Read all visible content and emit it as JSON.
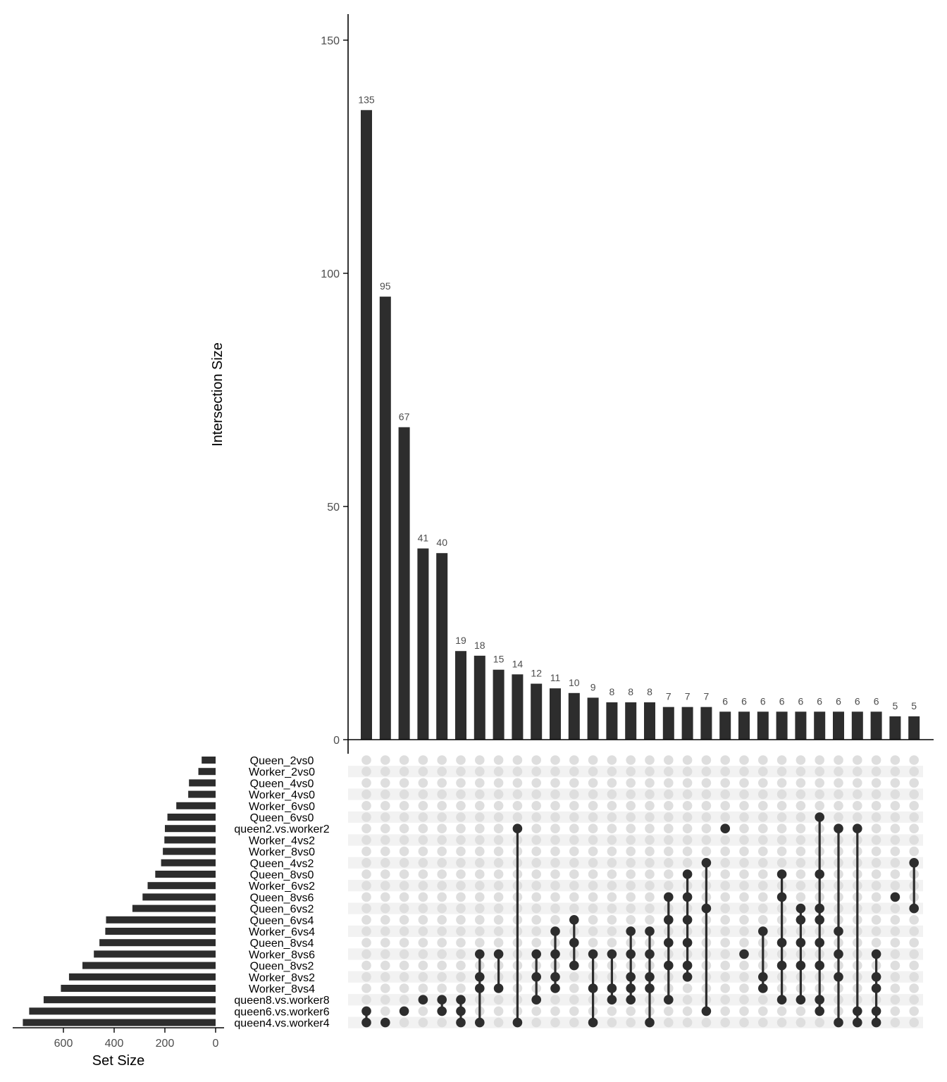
{
  "chart_data": {
    "type": "bar",
    "ylabel": "Intersection Size",
    "set_size_label": "Set Size",
    "ylim": [
      0,
      155
    ],
    "yticks": [
      0,
      50,
      100,
      150
    ],
    "set_size_ticks": [
      600,
      400,
      200,
      0
    ],
    "set_size_xlim": [
      800,
      0
    ],
    "sets": [
      {
        "name": "Queen_2vs0",
        "size": 55
      },
      {
        "name": "Worker_2vs0",
        "size": 68
      },
      {
        "name": "Queen_4vs0",
        "size": 105
      },
      {
        "name": "Worker_4vs0",
        "size": 108
      },
      {
        "name": "Worker_6vs0",
        "size": 155
      },
      {
        "name": "Queen_6vs0",
        "size": 190
      },
      {
        "name": "queen2.vs.worker2",
        "size": 200
      },
      {
        "name": "Worker_4vs2",
        "size": 202
      },
      {
        "name": "Worker_8vs0",
        "size": 208
      },
      {
        "name": "Queen_4vs2",
        "size": 215
      },
      {
        "name": "Queen_8vs0",
        "size": 238
      },
      {
        "name": "Worker_6vs2",
        "size": 268
      },
      {
        "name": "Queen_8vs6",
        "size": 288
      },
      {
        "name": "Queen_6vs2",
        "size": 328
      },
      {
        "name": "Queen_6vs4",
        "size": 432
      },
      {
        "name": "Worker_6vs4",
        "size": 435
      },
      {
        "name": "Queen_8vs4",
        "size": 458
      },
      {
        "name": "Worker_8vs6",
        "size": 480
      },
      {
        "name": "Queen_8vs2",
        "size": 525
      },
      {
        "name": "Worker_8vs2",
        "size": 578
      },
      {
        "name": "Worker_8vs4",
        "size": 610
      },
      {
        "name": "queen8.vs.worker8",
        "size": 678
      },
      {
        "name": "queen6.vs.worker6",
        "size": 735
      },
      {
        "name": "queen4.vs.worker4",
        "size": 760
      }
    ],
    "intersections": [
      {
        "value": 135,
        "sets": [
          22,
          23
        ]
      },
      {
        "value": 95,
        "sets": [
          23
        ]
      },
      {
        "value": 67,
        "sets": [
          22
        ]
      },
      {
        "value": 41,
        "sets": [
          21
        ]
      },
      {
        "value": 40,
        "sets": [
          21,
          22
        ]
      },
      {
        "value": 19,
        "sets": [
          21,
          22,
          23
        ]
      },
      {
        "value": 18,
        "sets": [
          17,
          19,
          20,
          23
        ]
      },
      {
        "value": 15,
        "sets": [
          17,
          20
        ]
      },
      {
        "value": 14,
        "sets": [
          6,
          23
        ]
      },
      {
        "value": 12,
        "sets": [
          17,
          19,
          21
        ]
      },
      {
        "value": 11,
        "sets": [
          15,
          17,
          19,
          20
        ]
      },
      {
        "value": 10,
        "sets": [
          14,
          16,
          18
        ]
      },
      {
        "value": 9,
        "sets": [
          17,
          20,
          23
        ]
      },
      {
        "value": 8,
        "sets": [
          17,
          20,
          21
        ]
      },
      {
        "value": 8,
        "sets": [
          15,
          17,
          19,
          20,
          21
        ]
      },
      {
        "value": 8,
        "sets": [
          15,
          17,
          19,
          20,
          23
        ]
      },
      {
        "value": 7,
        "sets": [
          12,
          14,
          16,
          18,
          21
        ]
      },
      {
        "value": 7,
        "sets": [
          10,
          12,
          14,
          16,
          18,
          19
        ]
      },
      {
        "value": 7,
        "sets": [
          9,
          13,
          22
        ]
      },
      {
        "value": 6,
        "sets": [
          6
        ]
      },
      {
        "value": 6,
        "sets": [
          17
        ]
      },
      {
        "value": 6,
        "sets": [
          15,
          19,
          20
        ]
      },
      {
        "value": 6,
        "sets": [
          10,
          12,
          16,
          18,
          21
        ]
      },
      {
        "value": 6,
        "sets": [
          13,
          14,
          16,
          18,
          21
        ]
      },
      {
        "value": 6,
        "sets": [
          5,
          10,
          13,
          14,
          16,
          18,
          21,
          22
        ]
      },
      {
        "value": 6,
        "sets": [
          6,
          15,
          17,
          19,
          23
        ]
      },
      {
        "value": 6,
        "sets": [
          6,
          22,
          23
        ]
      },
      {
        "value": 6,
        "sets": [
          17,
          19,
          20,
          22,
          23
        ]
      },
      {
        "value": 5,
        "sets": [
          12
        ]
      },
      {
        "value": 5,
        "sets": [
          9,
          13
        ]
      }
    ],
    "colors": {
      "bar": "#2d2d2d",
      "dot_active": "#2d2d2d",
      "dot_inactive": "#dedede",
      "stripe": "#f2f2f2",
      "axis": "#000000"
    }
  }
}
